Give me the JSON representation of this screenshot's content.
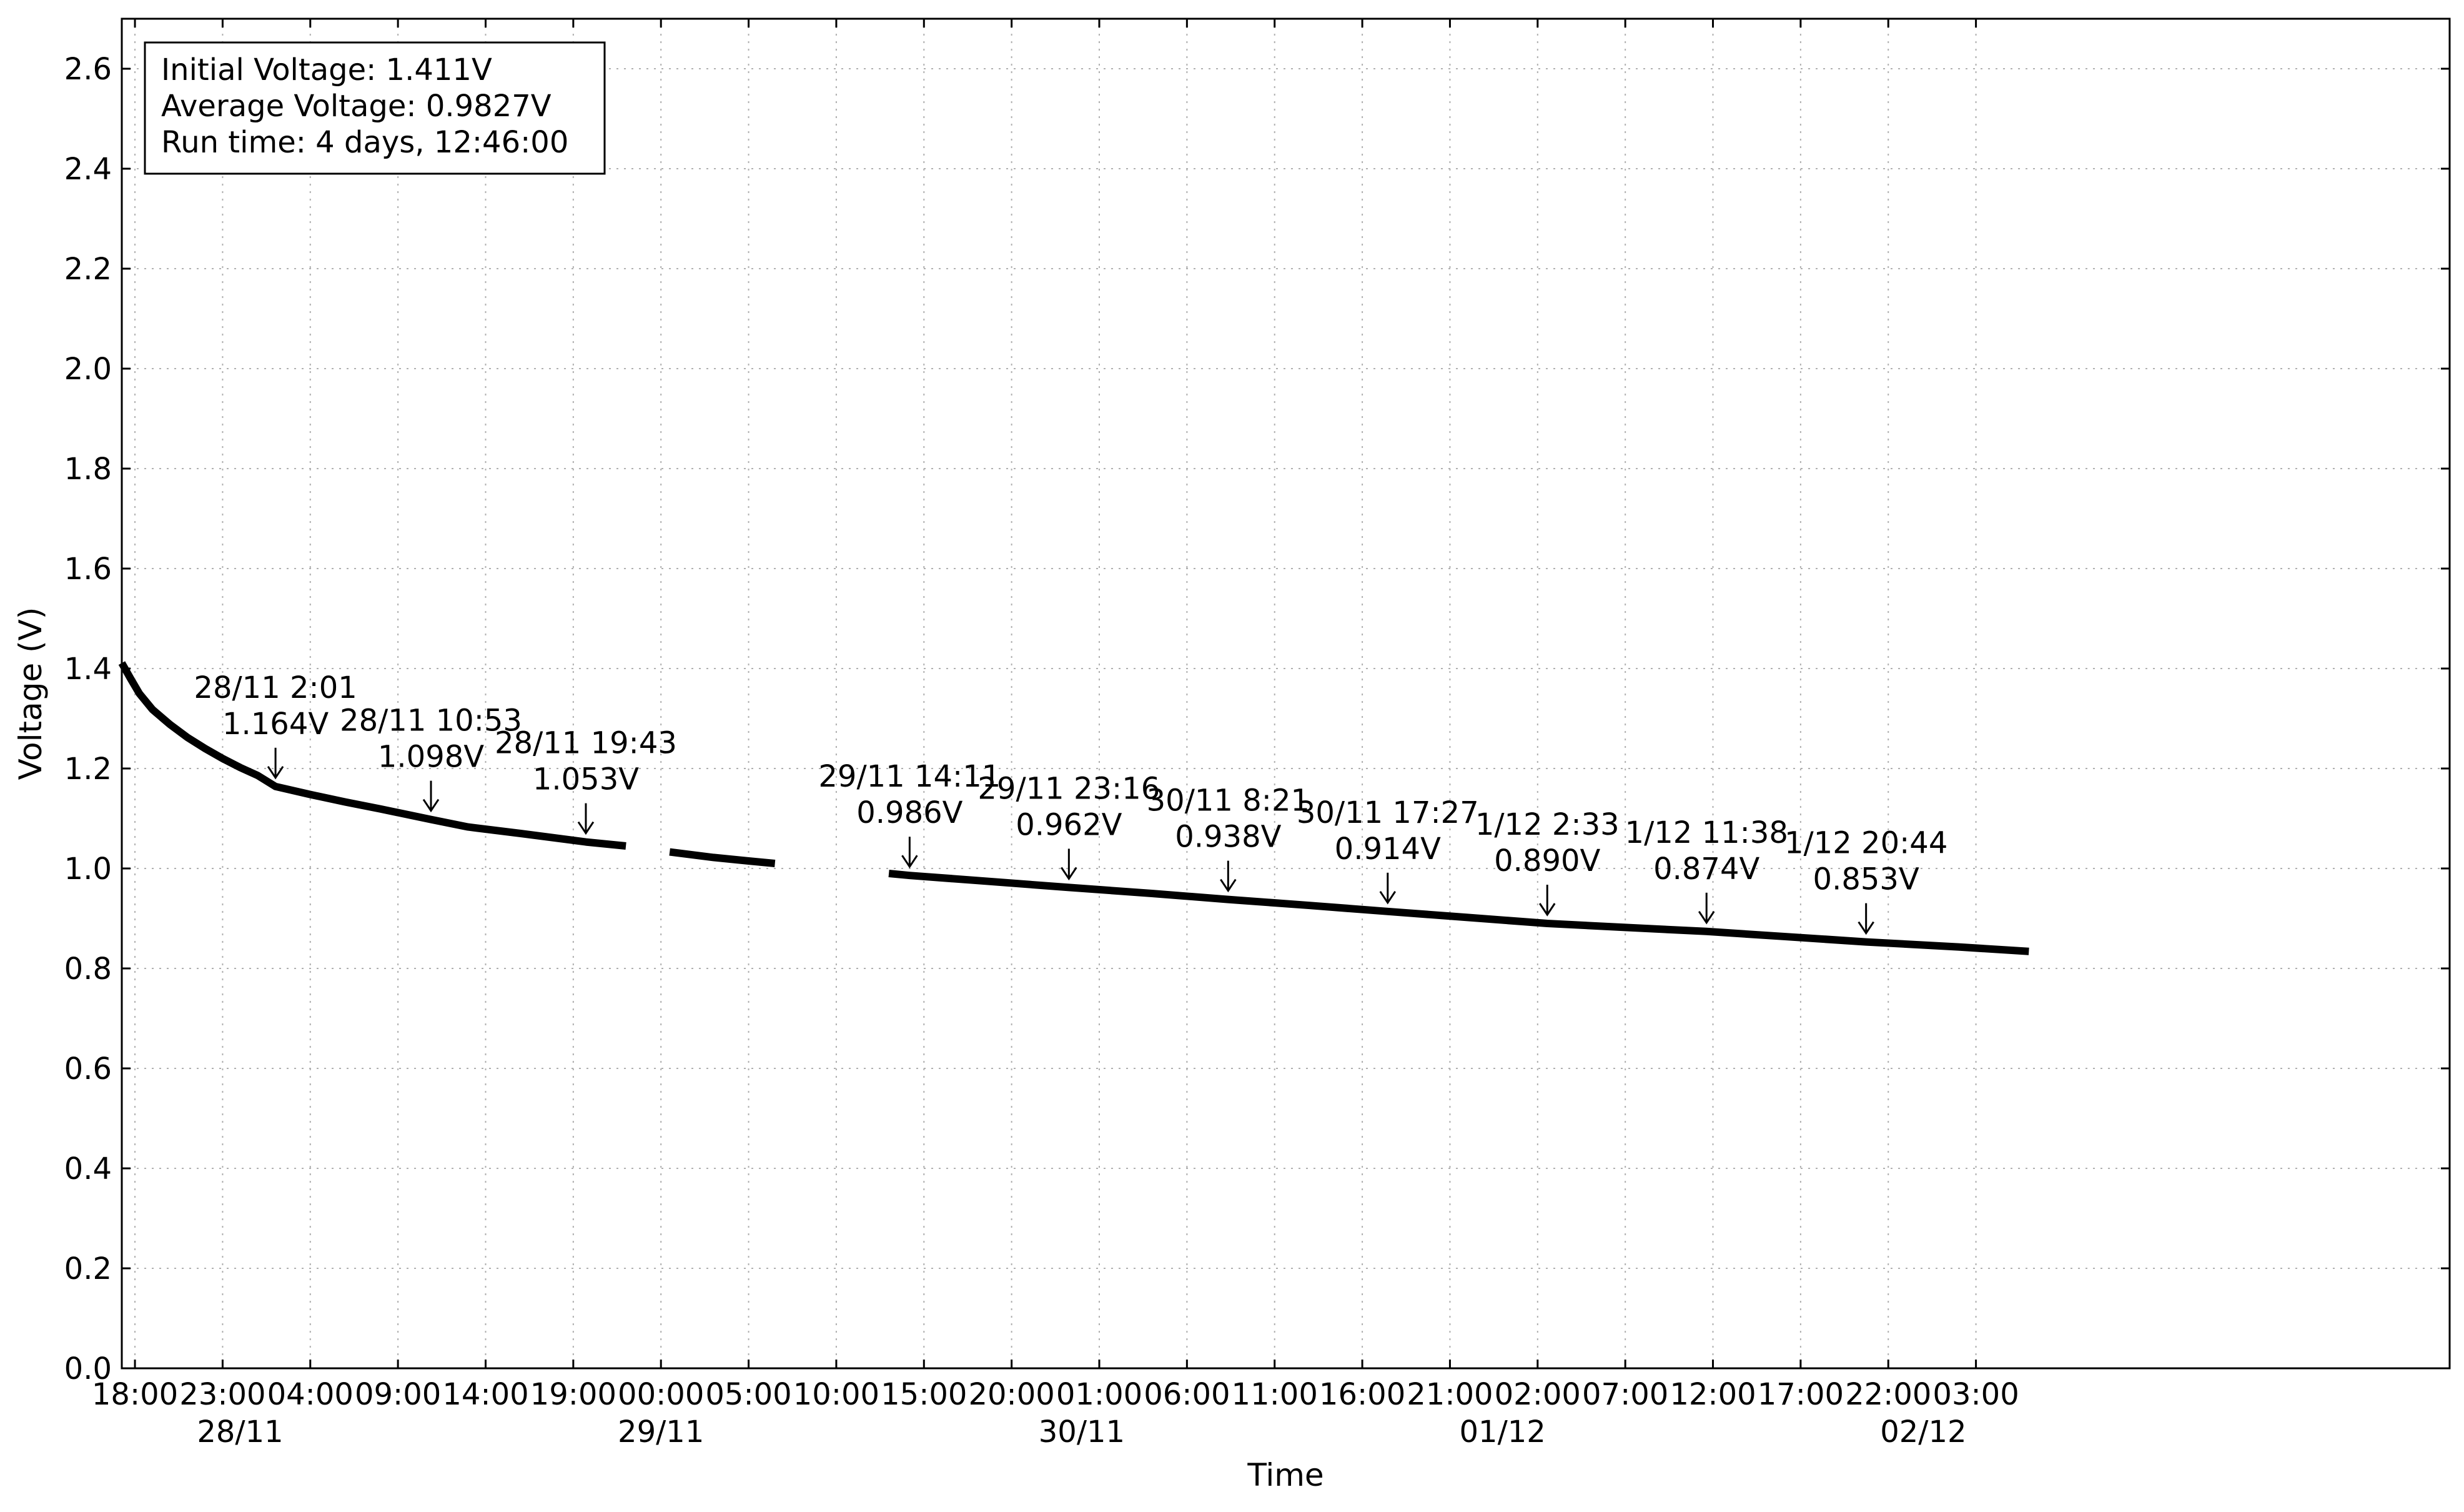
{
  "chart_data": {
    "type": "line",
    "xlabel": "Time",
    "ylabel": "Voltage (V)",
    "x_range": [
      "27/11 17:15",
      "03/12 06:01"
    ],
    "ylim": [
      0.0,
      2.7
    ],
    "grid": true,
    "grid_style": "dotted",
    "legend": "none",
    "line_color": "#000000",
    "y_ticks": [
      "0.0",
      "0.2",
      "0.4",
      "0.6",
      "0.8",
      "1.0",
      "1.2",
      "1.4",
      "1.6",
      "1.8",
      "2.0",
      "2.2",
      "2.4",
      "2.6"
    ],
    "x_ticks": [
      {
        "t": "27/11 18:00",
        "label": "18:00"
      },
      {
        "t": "27/11 23:00",
        "label": "23:00"
      },
      {
        "t": "28/11 04:00",
        "label": "04:00"
      },
      {
        "t": "28/11 09:00",
        "label": "09:00"
      },
      {
        "t": "28/11 14:00",
        "label": "14:00"
      },
      {
        "t": "28/11 19:00",
        "label": "19:00"
      },
      {
        "t": "29/11 00:00",
        "label": "00:00"
      },
      {
        "t": "29/11 05:00",
        "label": "05:00"
      },
      {
        "t": "29/11 10:00",
        "label": "10:00"
      },
      {
        "t": "29/11 15:00",
        "label": "15:00"
      },
      {
        "t": "29/11 20:00",
        "label": "20:00"
      },
      {
        "t": "30/11 01:00",
        "label": "01:00"
      },
      {
        "t": "30/11 06:00",
        "label": "06:00"
      },
      {
        "t": "30/11 11:00",
        "label": "11:00"
      },
      {
        "t": "30/11 16:00",
        "label": "16:00"
      },
      {
        "t": "30/11 21:00",
        "label": "21:00"
      },
      {
        "t": "01/12 02:00",
        "label": "02:00"
      },
      {
        "t": "01/12 07:00",
        "label": "07:00"
      },
      {
        "t": "01/12 12:00",
        "label": "12:00"
      },
      {
        "t": "01/12 17:00",
        "label": "17:00"
      },
      {
        "t": "01/12 22:00",
        "label": "22:00"
      },
      {
        "t": "02/12 03:00",
        "label": "03:00"
      }
    ],
    "date_ticks": [
      {
        "t": "28/11 00:00",
        "label": "28/11"
      },
      {
        "t": "29/11 00:00",
        "label": "29/11"
      },
      {
        "t": "30/11 00:00",
        "label": "30/11"
      },
      {
        "t": "01/12 00:00",
        "label": "01/12"
      },
      {
        "t": "02/12 00:00",
        "label": "02/12"
      }
    ],
    "series": [
      {
        "points": [
          [
            "27/11 17:15",
            1.411
          ],
          [
            "27/11 17:45",
            1.38
          ],
          [
            "27/11 18:15",
            1.35
          ],
          [
            "27/11 19:00",
            1.318
          ],
          [
            "27/11 20:00",
            1.288
          ],
          [
            "27/11 21:00",
            1.262
          ],
          [
            "27/11 22:00",
            1.24
          ],
          [
            "27/11 23:00",
            1.22
          ],
          [
            "28/11 00:00",
            1.202
          ],
          [
            "28/11 01:00",
            1.186
          ],
          [
            "28/11 02:01",
            1.164
          ],
          [
            "28/11 04:00",
            1.148
          ],
          [
            "28/11 06:00",
            1.133
          ],
          [
            "28/11 08:00",
            1.119
          ],
          [
            "28/11 10:53",
            1.098
          ],
          [
            "28/11 13:00",
            1.083
          ],
          [
            "28/11 16:00",
            1.07
          ],
          [
            "28/11 19:43",
            1.053
          ],
          [
            "28/11 22:00",
            1.045
          ]
        ]
      },
      {
        "points": [
          [
            "29/11 00:30",
            1.033
          ],
          [
            "29/11 03:00",
            1.022
          ],
          [
            "29/11 05:00",
            1.015
          ],
          [
            "29/11 06:30",
            1.01
          ]
        ]
      },
      {
        "points": [
          [
            "29/11 13:00",
            0.99
          ],
          [
            "29/11 14:11",
            0.986
          ],
          [
            "29/11 18:00",
            0.976
          ],
          [
            "29/11 23:16",
            0.962
          ],
          [
            "30/11 04:00",
            0.95
          ],
          [
            "30/11 08:21",
            0.938
          ],
          [
            "30/11 13:00",
            0.926
          ],
          [
            "30/11 17:27",
            0.914
          ],
          [
            "30/11 22:00",
            0.902
          ],
          [
            "01/12 02:33",
            0.89
          ],
          [
            "01/12 07:00",
            0.882
          ],
          [
            "01/12 11:38",
            0.874
          ],
          [
            "01/12 16:00",
            0.864
          ],
          [
            "01/12 20:44",
            0.853
          ],
          [
            "02/12 02:00",
            0.843
          ],
          [
            "02/12 06:01",
            0.834
          ]
        ]
      }
    ],
    "annotations": [
      {
        "t": "28/11 02:01",
        "v": 1.164,
        "line1": "28/11 2:01",
        "line2": "1.164V"
      },
      {
        "t": "28/11 10:53",
        "v": 1.098,
        "line1": "28/11 10:53",
        "line2": "1.098V"
      },
      {
        "t": "28/11 19:43",
        "v": 1.053,
        "line1": "28/11 19:43",
        "line2": "1.053V"
      },
      {
        "t": "29/11 14:11",
        "v": 0.986,
        "line1": "29/11 14:11",
        "line2": "0.986V"
      },
      {
        "t": "29/11 23:16",
        "v": 0.962,
        "line1": "29/11 23:16",
        "line2": "0.962V"
      },
      {
        "t": "30/11 08:21",
        "v": 0.938,
        "line1": "30/11 8:21",
        "line2": "0.938V"
      },
      {
        "t": "30/11 17:27",
        "v": 0.914,
        "line1": "30/11 17:27",
        "line2": "0.914V"
      },
      {
        "t": "01/12 02:33",
        "v": 0.89,
        "line1": "1/12 2:33",
        "line2": "0.890V"
      },
      {
        "t": "01/12 11:38",
        "v": 0.874,
        "line1": "1/12 11:38",
        "line2": "0.874V"
      },
      {
        "t": "01/12 20:44",
        "v": 0.853,
        "line1": "1/12 20:44",
        "line2": "0.853V"
      }
    ],
    "info_box": {
      "placement": "top-left",
      "lines": [
        "Initial Voltage: 1.411V",
        "Average Voltage: 0.9827V",
        "Run time: 4 days, 12:46:00"
      ]
    }
  }
}
